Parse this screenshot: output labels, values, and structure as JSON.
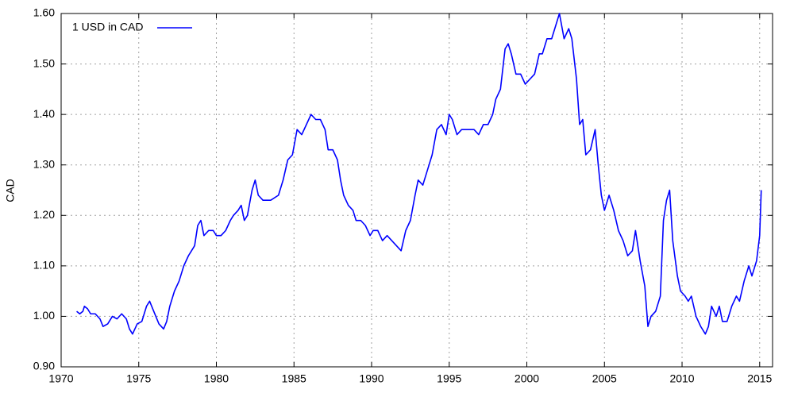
{
  "chart_data": {
    "type": "line",
    "y_label": "CAD",
    "x": [
      1971.0,
      1971.2,
      1971.4,
      1971.5,
      1971.7,
      1971.9,
      1972.2,
      1972.5,
      1972.7,
      1973.0,
      1973.3,
      1973.6,
      1973.9,
      1974.2,
      1974.4,
      1974.6,
      1974.9,
      1975.2,
      1975.5,
      1975.7,
      1975.9,
      1976.1,
      1976.3,
      1976.6,
      1976.8,
      1977.0,
      1977.3,
      1977.6,
      1977.9,
      1978.2,
      1978.4,
      1978.6,
      1978.8,
      1979.0,
      1979.2,
      1979.5,
      1979.8,
      1980.0,
      1980.3,
      1980.6,
      1980.9,
      1981.1,
      1981.4,
      1981.6,
      1981.8,
      1982.0,
      1982.3,
      1982.5,
      1982.7,
      1983.0,
      1983.5,
      1984.0,
      1984.3,
      1984.6,
      1984.9,
      1985.2,
      1985.5,
      1985.8,
      1986.1,
      1986.4,
      1986.7,
      1987.0,
      1987.2,
      1987.5,
      1987.8,
      1988.0,
      1988.2,
      1988.5,
      1988.8,
      1989.0,
      1989.3,
      1989.6,
      1989.9,
      1990.1,
      1990.4,
      1990.7,
      1991.0,
      1991.3,
      1991.6,
      1991.9,
      1992.2,
      1992.5,
      1992.8,
      1993.0,
      1993.3,
      1993.6,
      1993.9,
      1994.2,
      1994.5,
      1994.8,
      1995.0,
      1995.2,
      1995.5,
      1995.8,
      1996.0,
      1996.3,
      1996.6,
      1996.9,
      1997.2,
      1997.5,
      1997.8,
      1998.0,
      1998.3,
      1998.6,
      1998.8,
      1999.0,
      1999.3,
      1999.6,
      1999.9,
      2000.2,
      2000.5,
      2000.8,
      2001.0,
      2001.3,
      2001.6,
      2001.9,
      2002.1,
      2002.4,
      2002.7,
      2002.9,
      2003.2,
      2003.4,
      2003.6,
      2003.8,
      2004.1,
      2004.4,
      2004.6,
      2004.8,
      2005.0,
      2005.3,
      2005.6,
      2005.9,
      2006.2,
      2006.5,
      2006.8,
      2007.0,
      2007.3,
      2007.6,
      2007.8,
      2008.0,
      2008.3,
      2008.6,
      2008.8,
      2009.0,
      2009.2,
      2009.4,
      2009.7,
      2009.9,
      2010.2,
      2010.4,
      2010.6,
      2010.9,
      2011.2,
      2011.5,
      2011.7,
      2011.9,
      2012.2,
      2012.4,
      2012.6,
      2012.9,
      2013.2,
      2013.5,
      2013.7,
      2014.0,
      2014.3,
      2014.5,
      2014.8,
      2015.0,
      2015.1
    ],
    "series": [
      {
        "name": "1 USD in CAD",
        "color": "#0000ff",
        "values": [
          1.01,
          1.005,
          1.01,
          1.02,
          1.015,
          1.005,
          1.005,
          0.995,
          0.98,
          0.985,
          1.0,
          0.995,
          1.005,
          0.995,
          0.975,
          0.965,
          0.985,
          0.99,
          1.02,
          1.03,
          1.015,
          1.0,
          0.985,
          0.975,
          0.99,
          1.02,
          1.05,
          1.07,
          1.1,
          1.12,
          1.13,
          1.14,
          1.18,
          1.19,
          1.16,
          1.17,
          1.17,
          1.16,
          1.16,
          1.17,
          1.19,
          1.2,
          1.21,
          1.22,
          1.19,
          1.2,
          1.25,
          1.27,
          1.24,
          1.23,
          1.23,
          1.24,
          1.27,
          1.31,
          1.32,
          1.37,
          1.36,
          1.38,
          1.4,
          1.39,
          1.39,
          1.37,
          1.33,
          1.33,
          1.31,
          1.27,
          1.24,
          1.22,
          1.21,
          1.19,
          1.19,
          1.18,
          1.16,
          1.17,
          1.17,
          1.15,
          1.16,
          1.15,
          1.14,
          1.13,
          1.17,
          1.19,
          1.24,
          1.27,
          1.26,
          1.29,
          1.32,
          1.37,
          1.38,
          1.36,
          1.4,
          1.39,
          1.36,
          1.37,
          1.37,
          1.37,
          1.37,
          1.36,
          1.38,
          1.38,
          1.4,
          1.43,
          1.45,
          1.53,
          1.54,
          1.52,
          1.48,
          1.48,
          1.46,
          1.47,
          1.48,
          1.52,
          1.52,
          1.55,
          1.55,
          1.58,
          1.6,
          1.55,
          1.57,
          1.55,
          1.47,
          1.38,
          1.39,
          1.32,
          1.33,
          1.37,
          1.3,
          1.24,
          1.21,
          1.24,
          1.21,
          1.17,
          1.15,
          1.12,
          1.13,
          1.17,
          1.11,
          1.06,
          0.98,
          1.0,
          1.01,
          1.04,
          1.19,
          1.23,
          1.25,
          1.15,
          1.08,
          1.05,
          1.04,
          1.03,
          1.04,
          1.0,
          0.98,
          0.965,
          0.98,
          1.02,
          1.0,
          1.02,
          0.99,
          0.99,
          1.02,
          1.04,
          1.03,
          1.07,
          1.1,
          1.08,
          1.11,
          1.16,
          1.25
        ]
      }
    ],
    "xlim": [
      1970,
      2015.83
    ],
    "ylim": [
      0.9,
      1.6
    ],
    "xticks": [
      1970,
      1975,
      1980,
      1985,
      1990,
      1995,
      2000,
      2005,
      2010,
      2015
    ],
    "yticks": [
      {
        "value": 0.9,
        "label": "0.90"
      },
      {
        "value": 1.0,
        "label": "1.00"
      },
      {
        "value": 1.1,
        "label": "1.10"
      },
      {
        "value": 1.2,
        "label": "1.20"
      },
      {
        "value": 1.3,
        "label": "1.30"
      },
      {
        "value": 1.4,
        "label": "1.40"
      },
      {
        "value": 1.5,
        "label": "1.50"
      },
      {
        "value": 1.6,
        "label": "1.60"
      }
    ],
    "grid": true,
    "legend": "top-left"
  }
}
